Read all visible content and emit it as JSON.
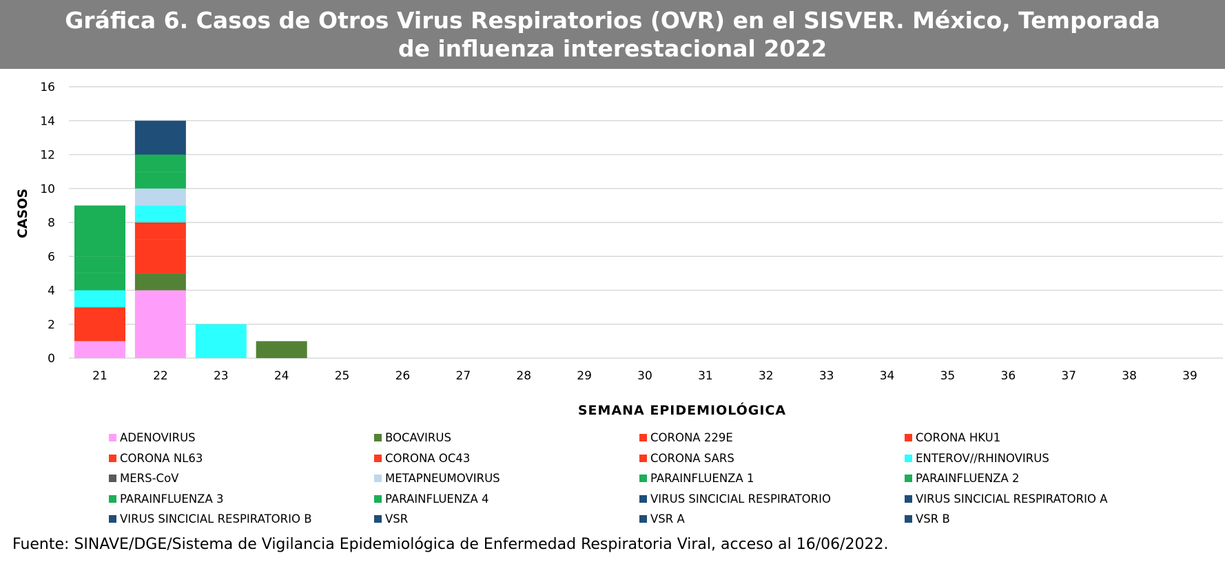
{
  "title": "Gráfica 6. Casos de Otros Virus Respiratorios (OVR) en el SISVER. México, Temporada de influenza interestacional 2022",
  "source": "Fuente: SINAVE/DGE/Sistema de Vigilancia Epidemiológica de Enfermedad Respiratoria Viral, acceso al 16/06/2022.",
  "chart_data": {
    "type": "bar",
    "stacked": true,
    "title": "Gráfica 6. Casos de Otros Virus Respiratorios (OVR) en el SISVER. México, Temporada de influenza interestacional 2022",
    "xlabel": "SEMANA EPIDEMIOLÓGICA",
    "ylabel": "CASOS",
    "ylim": [
      0,
      16
    ],
    "yticks": [
      "0",
      "2",
      "4",
      "6",
      "8",
      "10",
      "12",
      "14",
      "16"
    ],
    "grid": true,
    "legend_position": "bottom",
    "categories": [
      "21",
      "22",
      "23",
      "24",
      "25",
      "26",
      "27",
      "28",
      "29",
      "30",
      "31",
      "32",
      "33",
      "34",
      "35",
      "36",
      "37",
      "38",
      "39"
    ],
    "series": [
      {
        "name": "ADENOVIRUS",
        "color": "#FF9EFA",
        "values": [
          1,
          4,
          0,
          0,
          0,
          0,
          0,
          0,
          0,
          0,
          0,
          0,
          0,
          0,
          0,
          0,
          0,
          0,
          0
        ]
      },
      {
        "name": "BOCAVIRUS",
        "color": "#548235",
        "values": [
          0,
          1,
          0,
          1,
          0,
          0,
          0,
          0,
          0,
          0,
          0,
          0,
          0,
          0,
          0,
          0,
          0,
          0,
          0
        ]
      },
      {
        "name": "CORONA 229E",
        "color": "#FF3A1F",
        "values": [
          0,
          0,
          0,
          0,
          0,
          0,
          0,
          0,
          0,
          0,
          0,
          0,
          0,
          0,
          0,
          0,
          0,
          0,
          0
        ]
      },
      {
        "name": "CORONA HKU1",
        "color": "#FF3A1F",
        "values": [
          0,
          0,
          0,
          0,
          0,
          0,
          0,
          0,
          0,
          0,
          0,
          0,
          0,
          0,
          0,
          0,
          0,
          0,
          0
        ]
      },
      {
        "name": "CORONA NL63",
        "color": "#FF3A1F",
        "values": [
          2,
          2,
          0,
          0,
          0,
          0,
          0,
          0,
          0,
          0,
          0,
          0,
          0,
          0,
          0,
          0,
          0,
          0,
          0
        ]
      },
      {
        "name": "CORONA OC43",
        "color": "#FF3A1F",
        "values": [
          0,
          1,
          0,
          0,
          0,
          0,
          0,
          0,
          0,
          0,
          0,
          0,
          0,
          0,
          0,
          0,
          0,
          0,
          0
        ]
      },
      {
        "name": "CORONA SARS",
        "color": "#FF3A1F",
        "values": [
          0,
          0,
          0,
          0,
          0,
          0,
          0,
          0,
          0,
          0,
          0,
          0,
          0,
          0,
          0,
          0,
          0,
          0,
          0
        ]
      },
      {
        "name": "ENTEROV//RHINOVIRUS",
        "color": "#2CFFFF",
        "values": [
          1,
          1,
          2,
          0,
          0,
          0,
          0,
          0,
          0,
          0,
          0,
          0,
          0,
          0,
          0,
          0,
          0,
          0,
          0
        ]
      },
      {
        "name": "MERS-CoV",
        "color": "#595959",
        "values": [
          0,
          0,
          0,
          0,
          0,
          0,
          0,
          0,
          0,
          0,
          0,
          0,
          0,
          0,
          0,
          0,
          0,
          0,
          0
        ]
      },
      {
        "name": "METAPNEUMOVIRUS",
        "color": "#BDD7EE",
        "values": [
          0,
          1,
          0,
          0,
          0,
          0,
          0,
          0,
          0,
          0,
          0,
          0,
          0,
          0,
          0,
          0,
          0,
          0,
          0
        ]
      },
      {
        "name": "PARAINFLUENZA 1",
        "color": "#1BAF56",
        "values": [
          1,
          0,
          0,
          0,
          0,
          0,
          0,
          0,
          0,
          0,
          0,
          0,
          0,
          0,
          0,
          0,
          0,
          0,
          0
        ]
      },
      {
        "name": "PARAINFLUENZA 2",
        "color": "#1BAF56",
        "values": [
          1,
          0,
          0,
          0,
          0,
          0,
          0,
          0,
          0,
          0,
          0,
          0,
          0,
          0,
          0,
          0,
          0,
          0,
          0
        ]
      },
      {
        "name": "PARAINFLUENZA 3",
        "color": "#1BAF56",
        "values": [
          3,
          1,
          0,
          0,
          0,
          0,
          0,
          0,
          0,
          0,
          0,
          0,
          0,
          0,
          0,
          0,
          0,
          0,
          0
        ]
      },
      {
        "name": "PARAINFLUENZA 4",
        "color": "#1BAF56",
        "values": [
          0,
          1,
          0,
          0,
          0,
          0,
          0,
          0,
          0,
          0,
          0,
          0,
          0,
          0,
          0,
          0,
          0,
          0,
          0
        ]
      },
      {
        "name": "VIRUS SINCICIAL RESPIRATORIO",
        "color": "#1F4E79",
        "values": [
          0,
          0,
          0,
          0,
          0,
          0,
          0,
          0,
          0,
          0,
          0,
          0,
          0,
          0,
          0,
          0,
          0,
          0,
          0
        ]
      },
      {
        "name": "VIRUS SINCICIAL RESPIRATORIO A",
        "color": "#1F4E79",
        "values": [
          0,
          0,
          0,
          0,
          0,
          0,
          0,
          0,
          0,
          0,
          0,
          0,
          0,
          0,
          0,
          0,
          0,
          0,
          0
        ]
      },
      {
        "name": "VIRUS SINCICIAL RESPIRATORIO B",
        "color": "#1F4E79",
        "values": [
          0,
          0,
          0,
          0,
          0,
          0,
          0,
          0,
          0,
          0,
          0,
          0,
          0,
          0,
          0,
          0,
          0,
          0,
          0
        ]
      },
      {
        "name": "VSR",
        "color": "#1F4E79",
        "values": [
          0,
          2,
          0,
          0,
          0,
          0,
          0,
          0,
          0,
          0,
          0,
          0,
          0,
          0,
          0,
          0,
          0,
          0,
          0
        ]
      },
      {
        "name": "VSR A",
        "color": "#1F4E79",
        "values": [
          0,
          0,
          0,
          0,
          0,
          0,
          0,
          0,
          0,
          0,
          0,
          0,
          0,
          0,
          0,
          0,
          0,
          0,
          0
        ]
      },
      {
        "name": "VSR B",
        "color": "#1F4E79",
        "values": [
          0,
          0,
          0,
          0,
          0,
          0,
          0,
          0,
          0,
          0,
          0,
          0,
          0,
          0,
          0,
          0,
          0,
          0,
          0
        ]
      }
    ]
  }
}
